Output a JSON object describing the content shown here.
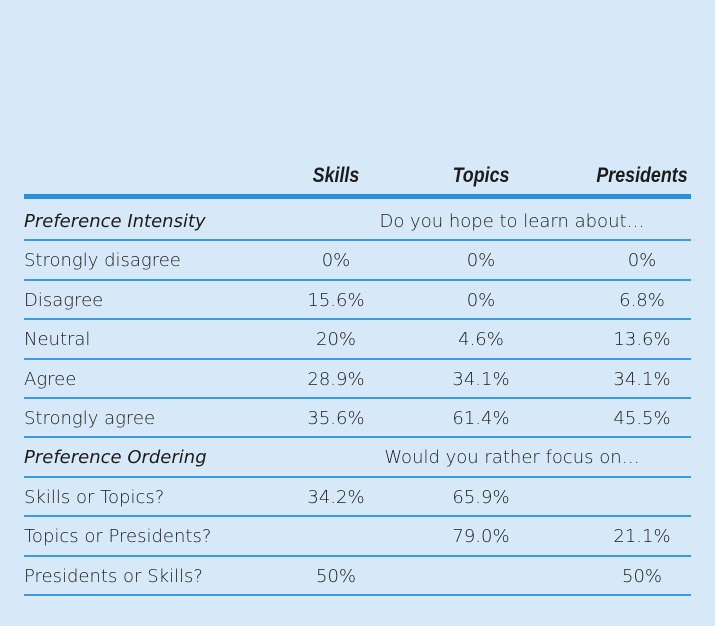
{
  "table": {
    "columns": [
      "Skills",
      "Topics",
      "Presidents"
    ],
    "sections": [
      {
        "title": "Preference Intensity",
        "question": "Do you hope to learn about…",
        "rows": [
          {
            "label": "Strongly disagree",
            "cells": [
              "0%",
              "0%",
              "0%"
            ]
          },
          {
            "label": "Disagree",
            "cells": [
              "15.6%",
              "0%",
              "6.8%"
            ]
          },
          {
            "label": "Neutral",
            "cells": [
              "20%",
              "4.6%",
              "13.6%"
            ]
          },
          {
            "label": "Agree",
            "cells": [
              "28.9%",
              "34.1%",
              "34.1%"
            ]
          },
          {
            "label": "Strongly agree",
            "cells": [
              "35.6%",
              "61.4%",
              "45.5%"
            ]
          }
        ]
      },
      {
        "title": "Preference Ordering",
        "question": "Would you rather focus on…",
        "rows": [
          {
            "label": "Skills or Topics?",
            "cells": [
              "34.2%",
              "65.9%",
              null
            ]
          },
          {
            "label": "Topics or Presidents?",
            "cells": [
              null,
              "79.0%",
              "21.1%"
            ]
          },
          {
            "label": "Presidents or Skills?",
            "cells": [
              "50%",
              null,
              "50%"
            ]
          }
        ]
      }
    ]
  }
}
